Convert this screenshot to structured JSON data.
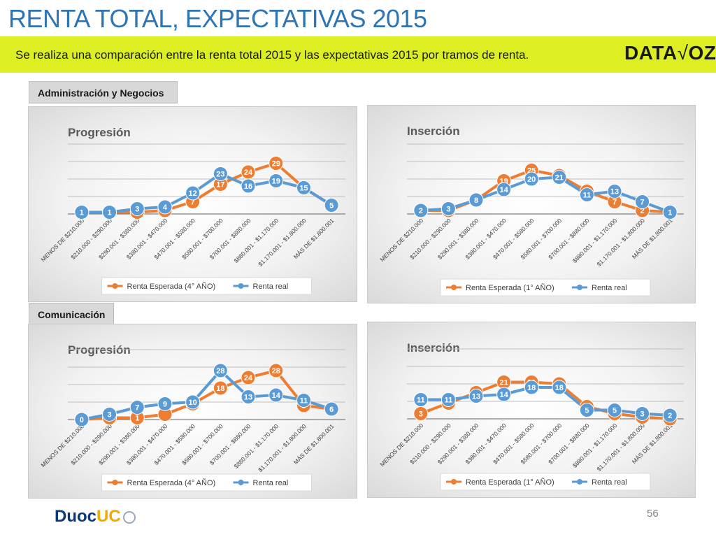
{
  "header": {
    "title": "RENTA TOTAL, EXPECTATIVAS 2015",
    "subtitle": "Se realiza una comparación entre la renta total 2015 y las expectativas 2015 por tramos de renta.",
    "brand": "DATA",
    "brand_suffix": "OZ"
  },
  "sections": {
    "admin": "Administración y Negocios",
    "comunicacion": "Comunicación"
  },
  "footer": {
    "page_number": "56",
    "logo_main": "Duoc",
    "logo_accent": "UC"
  },
  "colors": {
    "orange": "#ed7d31",
    "blue": "#5b9bd5",
    "banner": "#ddee22",
    "title": "#2e75b6"
  },
  "chart_data": [
    {
      "type": "line",
      "title": "Progresión",
      "section": "Administración y Negocios",
      "categories": [
        "MENOS DE $210.000",
        "$210.000 - $290.000",
        "$290.001 - $380.000",
        "$380.001 - $470.000",
        "$470.001 - $580.000",
        "$580.001 - $700.000",
        "$700.001 - $880.000",
        "$880.001 - $1.170.000",
        "$1.170.001 - $1.800.000",
        "MÁS DE $1.800.001"
      ],
      "series": [
        {
          "name": "Renta Esperada (4° AÑO)",
          "values": [
            1,
            1,
            1,
            2,
            7,
            17,
            24,
            29,
            15,
            5
          ]
        },
        {
          "name": "Renta real",
          "values": [
            1,
            1,
            3,
            4,
            12,
            23,
            16,
            19,
            15,
            5
          ]
        }
      ],
      "data_labels": {
        "Renta Esperada (4° AÑO)": [
          "",
          "",
          "",
          "2",
          "7",
          "17",
          "24",
          "29",
          "",
          ""
        ],
        "Renta real": [
          "1",
          "1",
          "3",
          "4",
          "12",
          "23",
          "16",
          "19",
          "15",
          "5"
        ]
      },
      "ylim": [
        0,
        40
      ],
      "legend": "bottom",
      "grid": true
    },
    {
      "type": "line",
      "title": "Inserción",
      "section": "Administración y Negocios",
      "categories": [
        "MENOS DE $210.000",
        "$210.000 - $290.000",
        "$290.001 - $380.000",
        "$380.001 - $470.000",
        "$470.001 - $580.000",
        "$580.001 - $700.000",
        "$700.001 - $880.000",
        "$880.001 - $1.170.000",
        "$1.170.001 - $1.800.000",
        "MÁS DE $1.800.001"
      ],
      "series": [
        {
          "name": "Renta Esperada (1° AÑO)",
          "values": [
            2,
            2,
            8,
            19,
            25,
            22,
            13,
            7,
            2,
            1
          ]
        },
        {
          "name": "Renta real",
          "values": [
            2,
            3,
            8,
            14,
            20,
            21,
            11,
            13,
            7,
            1
          ]
        }
      ],
      "data_labels": {
        "Renta Esperada (1° AÑO)": [
          "",
          "2",
          "",
          "19",
          "25",
          "22",
          "13",
          "7",
          "2",
          ""
        ],
        "Renta real": [
          "2",
          "3",
          "8",
          "14",
          "20",
          "21",
          "11",
          "13",
          "7",
          "1"
        ]
      },
      "ylim": [
        0,
        40
      ],
      "legend": "bottom",
      "grid": true
    },
    {
      "type": "line",
      "title": "Progresión",
      "section": "Comunicación",
      "categories": [
        "MENOS DE $210.000",
        "$210.000 - $290.000",
        "$290.001 - $380.000",
        "$380.001 - $470.000",
        "$470.001 - $580.000",
        "$580.001 - $700.000",
        "$700.001 - $880.000",
        "$880.001 - $1.170.000",
        "$1.170.001 - $1.800.000",
        "MÁS DE $1.800.001"
      ],
      "series": [
        {
          "name": "Renta Esperada (4° AÑO)",
          "values": [
            0,
            1,
            1,
            3,
            9,
            18,
            24,
            28,
            8,
            6
          ]
        },
        {
          "name": "Renta real",
          "values": [
            0,
            3,
            7,
            9,
            10,
            28,
            13,
            14,
            11,
            6
          ]
        }
      ],
      "data_labels": {
        "Renta Esperada (4° AÑO)": [
          "0",
          "1",
          "1",
          "",
          "9",
          "18",
          "24",
          "28",
          "8",
          ""
        ],
        "Renta real": [
          "0",
          "3",
          "7",
          "9",
          "10",
          "28",
          "13",
          "14",
          "11",
          "6"
        ]
      },
      "ylim": [
        0,
        40
      ],
      "legend": "bottom",
      "grid": true
    },
    {
      "type": "line",
      "title": "Inserción",
      "section": "Comunicación",
      "categories": [
        "MENOS DE $210.000",
        "$210.000 - $290.000",
        "$290.001 - $380.000",
        "$380.001 - $470.000",
        "$470.001 - $580.000",
        "$580.001 - $700.000",
        "$700.001 - $880.000",
        "$880.001 - $1.170.000",
        "$1.170.001 - $1.800.000",
        "MÁS DE $1.800.001"
      ],
      "series": [
        {
          "name": "Renta Esperada (1° AÑO)",
          "values": [
            3,
            9,
            15,
            21,
            21,
            20,
            7,
            3,
            1,
            0
          ]
        },
        {
          "name": "Renta real",
          "values": [
            11,
            11,
            13,
            14,
            18,
            18,
            5,
            5,
            3,
            2
          ]
        }
      ],
      "data_labels": {
        "Renta Esperada (1° AÑO)": [
          "3",
          "9",
          "15",
          "21",
          "21",
          "20",
          "",
          "3",
          "1",
          "0"
        ],
        "Renta real": [
          "11",
          "11",
          "13",
          "14",
          "18",
          "18",
          "5",
          "5",
          "3",
          "2"
        ]
      },
      "ylim": [
        0,
        40
      ],
      "legend": "bottom",
      "grid": true
    }
  ]
}
